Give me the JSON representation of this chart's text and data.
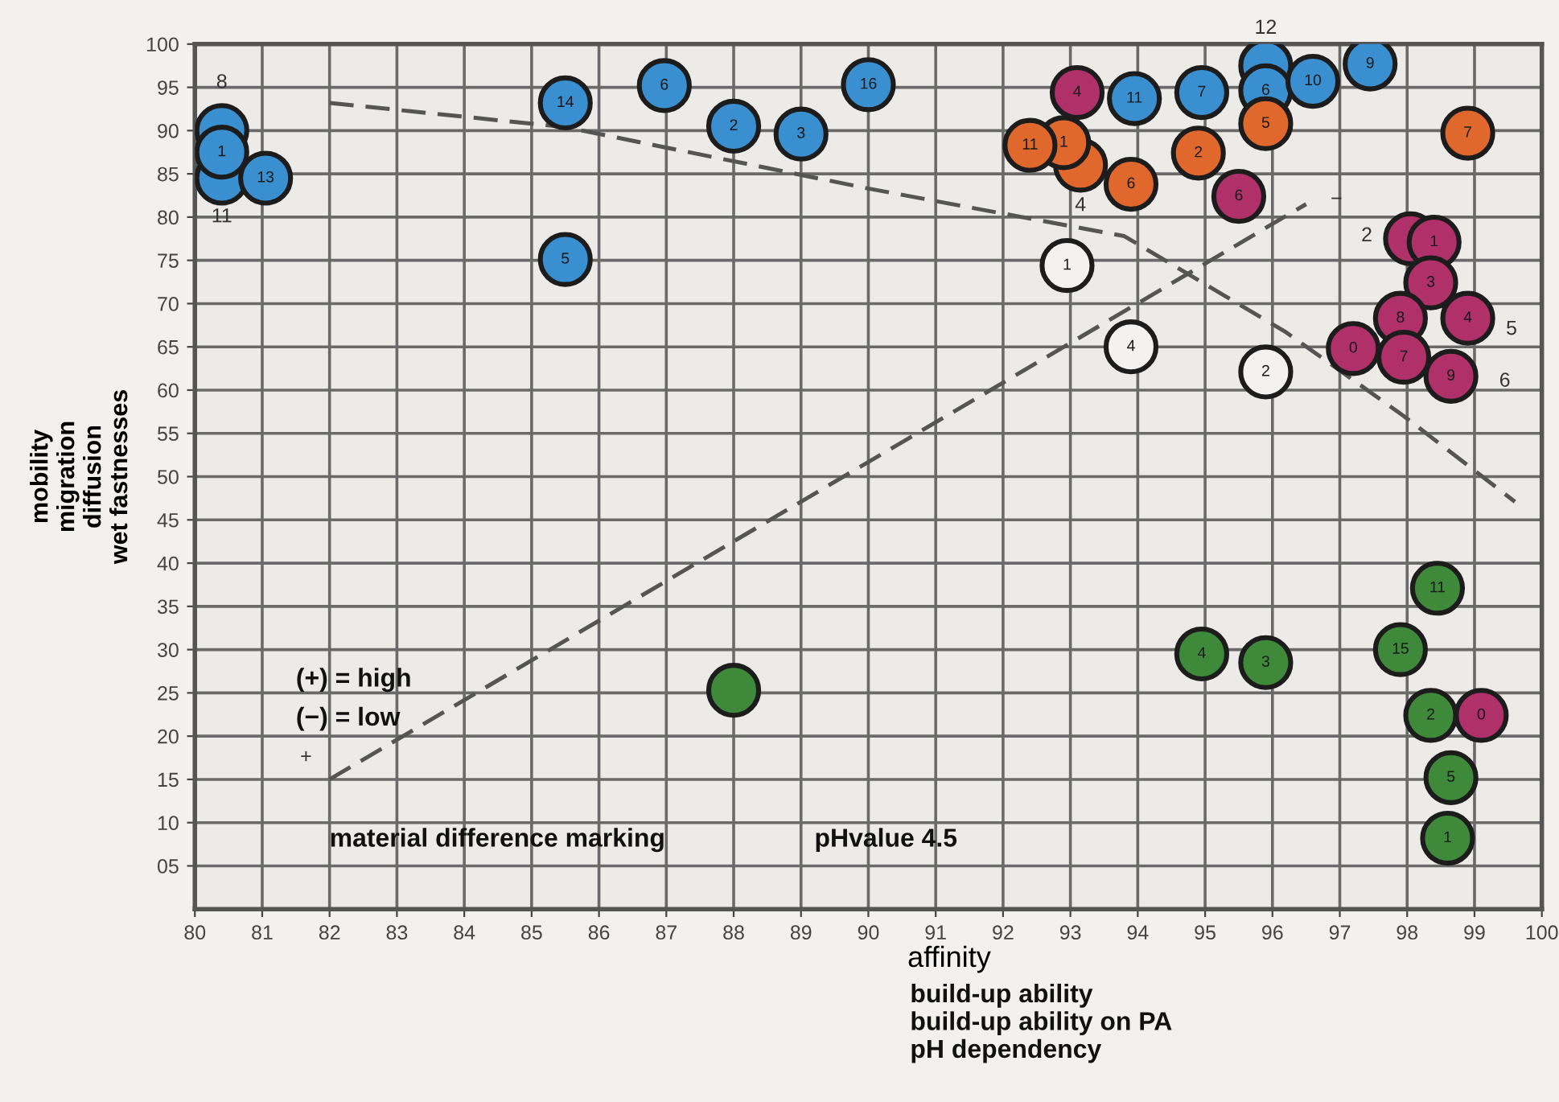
{
  "chart_data": {
    "type": "scatter",
    "xlabel": "affinity",
    "ylabel": "mobility\nmigration\ndiffusion\nwet fastnesses",
    "xlim": [
      80,
      100
    ],
    "ylim": [
      0,
      100
    ],
    "xticks": [
      80,
      81,
      82,
      83,
      84,
      85,
      86,
      87,
      88,
      89,
      90,
      91,
      92,
      93,
      94,
      95,
      96,
      97,
      98,
      99,
      100
    ],
    "yticks": [
      {
        "value": 5,
        "label": "05"
      },
      10,
      15,
      20,
      25,
      30,
      35,
      40,
      45,
      50,
      55,
      60,
      65,
      70,
      75,
      80,
      85,
      90,
      95,
      100
    ],
    "grid": true,
    "marker": "circle",
    "series": [
      {
        "color": "#3a8fd0",
        "x": [
          80.4,
          80.4,
          80.4,
          81.05,
          85.5,
          85.5,
          86.97,
          88.0,
          89.0,
          90.0,
          93.95,
          94.95,
          95.9,
          95.9,
          96.6,
          97.45
        ],
        "values": [
          84.5,
          90,
          87.5,
          84.5,
          93.2,
          75.1,
          95.2,
          90.5,
          89.6,
          95.3,
          93.7,
          94.4,
          97.5,
          94.6,
          95.7,
          97.7
        ]
      },
      {
        "color": "#e0682c",
        "x": [
          93.15,
          92.9,
          92.4,
          93.9,
          94.9,
          95.9,
          98.9
        ],
        "values": [
          86.0,
          88.6,
          88.3,
          83.8,
          87.4,
          90.8,
          89.7
        ]
      },
      {
        "color": "#b0306a",
        "x": [
          93.1,
          95.5,
          98.05,
          98.4,
          98.35,
          98.9,
          97.9,
          97.2,
          97.95,
          98.65,
          99.1
        ],
        "values": [
          94.4,
          82.4,
          77.5,
          77.1,
          72.4,
          68.3,
          68.3,
          64.8,
          63.8,
          61.6,
          22.4
        ]
      },
      {
        "color": "#f4f2f0",
        "x": [
          92.95,
          93.9,
          95.9
        ],
        "values": [
          74.4,
          65.0,
          62.1
        ]
      },
      {
        "color": "#3f8a3a",
        "x": [
          88.0,
          94.95,
          95.9,
          98.45,
          97.9,
          98.35,
          98.65,
          98.6
        ],
        "values": [
          25.3,
          29.5,
          28.5,
          37.1,
          30.0,
          22.4,
          15.2,
          8.2
        ]
      },
      {
        "type": "line",
        "line_style": "dashed",
        "marker": "none",
        "color": "#555555",
        "x": [
          82,
          85.5,
          90,
          93.8,
          96.2,
          97.95,
          99.6
        ],
        "values": [
          93.2,
          90.4,
          83.3,
          77.8,
          66.7,
          57,
          47.1
        ]
      },
      {
        "type": "line",
        "line_style": "dashed",
        "marker": "none",
        "color": "#555555",
        "x": [
          82,
          96.5
        ],
        "values": [
          15,
          81.5
        ]
      }
    ],
    "annotations": [
      "(+) = high",
      "(−) = low",
      "material difference marking",
      "pHvalue 4.5",
      "build-up ability",
      "build-up ability on PA",
      "pH dependency",
      "+",
      "−",
      "8",
      "11",
      "12",
      "4",
      "2",
      "5",
      "6",
      {
        "text": "1",
        "x": 80.4,
        "y": 87.5
      },
      {
        "text": "13",
        "x": 81.05,
        "y": 84.5
      },
      {
        "text": "14",
        "x": 85.5,
        "y": 93.2
      },
      {
        "text": "5",
        "x": 85.5,
        "y": 75.1
      },
      {
        "text": "6",
        "x": 86.97,
        "y": 95.2
      },
      {
        "text": "2",
        "x": 88.0,
        "y": 90.5
      },
      {
        "text": "3",
        "x": 89.0,
        "y": 89.6
      },
      {
        "text": "16",
        "x": 90.0,
        "y": 95.3
      },
      {
        "text": "11",
        "x": 93.95,
        "y": 93.7
      },
      {
        "text": "7",
        "x": 94.95,
        "y": 94.4
      },
      {
        "text": "6",
        "x": 95.9,
        "y": 94.6
      },
      {
        "text": "10",
        "x": 96.6,
        "y": 95.7
      },
      {
        "text": "9",
        "x": 97.45,
        "y": 97.7
      },
      {
        "text": "11",
        "x": 92.4,
        "y": 88.3
      },
      {
        "text": "1",
        "x": 92.9,
        "y": 88.6
      },
      {
        "text": "6",
        "x": 93.9,
        "y": 83.8
      },
      {
        "text": "2",
        "x": 94.9,
        "y": 87.4
      },
      {
        "text": "5",
        "x": 95.9,
        "y": 90.8
      },
      {
        "text": "7",
        "x": 98.9,
        "y": 89.7
      },
      {
        "text": "4",
        "x": 93.1,
        "y": 94.4
      },
      {
        "text": "6",
        "x": 95.5,
        "y": 82.4
      },
      {
        "text": "1",
        "x": 98.4,
        "y": 77.1
      },
      {
        "text": "3",
        "x": 98.35,
        "y": 72.4
      },
      {
        "text": "4",
        "x": 98.9,
        "y": 68.3
      },
      {
        "text": "8",
        "x": 97.9,
        "y": 68.3
      },
      {
        "text": "0",
        "x": 97.2,
        "y": 64.8
      },
      {
        "text": "7",
        "x": 97.95,
        "y": 63.8
      },
      {
        "text": "9",
        "x": 98.65,
        "y": 61.6
      },
      {
        "text": "0",
        "x": 99.1,
        "y": 22.4
      },
      {
        "text": "1",
        "x": 92.95,
        "y": 74.4
      },
      {
        "text": "4",
        "x": 93.9,
        "y": 65.0
      },
      {
        "text": "2",
        "x": 95.9,
        "y": 62.1
      },
      {
        "text": "4",
        "x": 94.95,
        "y": 29.5
      },
      {
        "text": "3",
        "x": 95.9,
        "y": 28.5
      },
      {
        "text": "11",
        "x": 98.45,
        "y": 37.1
      },
      {
        "text": "15",
        "x": 97.9,
        "y": 30.0
      },
      {
        "text": "2",
        "x": 98.35,
        "y": 22.4
      },
      {
        "text": "5",
        "x": 98.65,
        "y": 15.2
      },
      {
        "text": "1",
        "x": 98.6,
        "y": 8.2
      }
    ]
  }
}
